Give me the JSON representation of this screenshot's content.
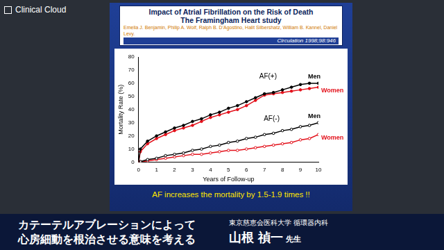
{
  "brand": "Clinical Cloud",
  "slide": {
    "authors": "Emelia J. Benjamin, Philip A. Wolf, Ralph B. D'Agostino, Halit Silbershatz, William B. Kannel, Daniel Levy.",
    "citation": "Circulation 1998;98:946",
    "conclusion": "AF increases the mortality by 1.5-1.9 times !!"
  },
  "chart_data": {
    "type": "line",
    "title": "Impact of Atrial Fibrillation on the Risk of Death",
    "subtitle": "The Framingham Heart study",
    "x_label": "Years of Follow-up",
    "y_label": "Mortality Rate (%)",
    "x": [
      0,
      0.1,
      0.5,
      1,
      1.5,
      2,
      2.5,
      3,
      3.5,
      4,
      4.5,
      5,
      5.5,
      6,
      6.5,
      7,
      7.5,
      8,
      8.5,
      9,
      9.5,
      10
    ],
    "series": [
      {
        "name": "Men",
        "color": "#000000",
        "marker": "circle",
        "values": [
          0,
          10,
          16,
          20,
          23,
          26,
          28,
          31,
          33,
          36,
          38,
          41,
          43,
          46,
          49,
          52,
          53,
          55,
          57,
          59,
          60,
          60
        ]
      },
      {
        "name": "Women",
        "color": "#e3101a",
        "marker": "circle",
        "values": [
          0,
          8,
          14,
          18,
          21,
          24,
          26,
          28,
          31,
          34,
          36,
          38,
          40,
          43,
          47,
          51,
          52,
          53,
          54,
          55,
          56,
          57
        ]
      },
      {
        "name": "Men",
        "color": "#000000",
        "marker": "open_circle",
        "values": [
          0,
          0.5,
          2,
          3,
          5,
          6,
          7,
          9,
          10,
          12,
          13,
          15,
          16,
          18,
          19,
          21,
          22,
          24,
          25,
          27,
          28,
          30
        ]
      },
      {
        "name": "Women",
        "color": "#e3101a",
        "marker": "open_circle",
        "values": [
          0,
          0.5,
          1,
          2,
          3,
          4,
          5,
          6,
          6,
          7,
          8,
          9,
          9,
          10,
          11,
          12,
          13,
          14,
          15,
          17,
          18,
          21
        ]
      }
    ],
    "annotations": [
      {
        "text": "AF(+)",
        "x": 7.2,
        "y": 65
      },
      {
        "text": "AF(-)",
        "x": 7.4,
        "y": 33
      }
    ],
    "xlim": [
      0,
      10
    ],
    "xticks": [
      0,
      1,
      2,
      3,
      4,
      5,
      6,
      7,
      8,
      9,
      10
    ],
    "ylim": [
      0,
      80
    ],
    "yticks": [
      0,
      10,
      20,
      30,
      40,
      50,
      60,
      70,
      80
    ],
    "grid": false
  },
  "banner": {
    "headline": [
      "カテーテルアブレーションによって",
      "心房細動を根治させる意味を考える"
    ],
    "affiliation": "東京慈恵会医科大学 循環器内科",
    "speaker": "山根 禎一",
    "honorific": "先生"
  }
}
